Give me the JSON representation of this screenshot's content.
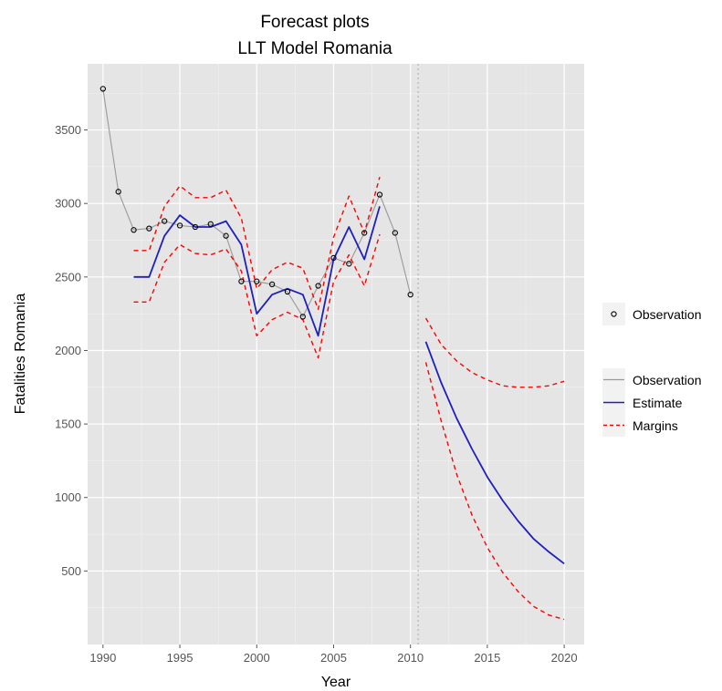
{
  "chart_data": {
    "type": "line",
    "title": "Forecast plots",
    "subtitle": "LLT Model Romania",
    "xlabel": "Year",
    "ylabel": "Fatalities Romania",
    "xlim": [
      1989,
      2021.3
    ],
    "ylim": [
      0,
      3950
    ],
    "x_ticks": [
      1990,
      1995,
      2000,
      2005,
      2010,
      2015,
      2020
    ],
    "y_ticks": [
      500,
      1000,
      1500,
      2000,
      2500,
      3000,
      3500
    ],
    "grid": true,
    "background_color": "#e5e5e5",
    "forecast_start": 2010.5,
    "legend": {
      "placement": "right",
      "points_entry": "Observation",
      "line_entries": [
        "Observation",
        "Estimate",
        "Margins"
      ]
    },
    "series": [
      {
        "name": "Observation",
        "style": "line-with-points",
        "color": "#999999",
        "x": [
          1990,
          1991,
          1992,
          1993,
          1994,
          1995,
          1996,
          1997,
          1998,
          1999,
          2000,
          2001,
          2002,
          2003,
          2004,
          2005,
          2006,
          2007,
          2008,
          2009,
          2010
        ],
        "y": [
          3780,
          3080,
          2820,
          2830,
          2880,
          2850,
          2840,
          2860,
          2780,
          2470,
          2470,
          2450,
          2400,
          2230,
          2440,
          2630,
          2590,
          2800,
          3060,
          2800,
          2380
        ]
      },
      {
        "name": "Estimate",
        "style": "solid",
        "color": "#1f1fbf",
        "x": [
          1992,
          1993,
          1994,
          1995,
          1996,
          1997,
          1998,
          1999,
          2000,
          2001,
          2002,
          2003,
          2004,
          2005,
          2006,
          2007,
          2008
        ],
        "y": [
          2500,
          2500,
          2780,
          2920,
          2840,
          2840,
          2880,
          2720,
          2250,
          2380,
          2420,
          2380,
          2100,
          2620,
          2840,
          2620,
          2980
        ]
      },
      {
        "name": "Estimate",
        "style": "solid",
        "color": "#1f1fbf",
        "x": [
          2011,
          2012,
          2013,
          2014,
          2015,
          2016,
          2017,
          2018,
          2019,
          2020
        ],
        "y": [
          2060,
          1780,
          1540,
          1330,
          1140,
          980,
          840,
          720,
          630,
          550
        ]
      },
      {
        "name": "Margins",
        "style": "dashed",
        "color": "#ff0000",
        "x": [
          1992,
          1993,
          1994,
          1995,
          1996,
          1997,
          1998,
          1999,
          2000,
          2001,
          2002,
          2003,
          2004,
          2005,
          2006,
          2007,
          2008
        ],
        "y": [
          2680,
          2680,
          2980,
          3120,
          3040,
          3040,
          3090,
          2900,
          2420,
          2550,
          2600,
          2560,
          2280,
          2770,
          3050,
          2800,
          3180
        ]
      },
      {
        "name": "Margins",
        "style": "dashed",
        "color": "#ff0000",
        "x": [
          1992,
          1993,
          1994,
          1995,
          1996,
          1997,
          1998,
          1999,
          2000,
          2001,
          2002,
          2003,
          2004,
          2005,
          2006,
          2007,
          2008
        ],
        "y": [
          2330,
          2330,
          2600,
          2720,
          2660,
          2650,
          2690,
          2540,
          2100,
          2210,
          2260,
          2210,
          1950,
          2470,
          2650,
          2440,
          2790
        ]
      },
      {
        "name": "Margins",
        "style": "dashed",
        "color": "#ff0000",
        "x": [
          2011,
          2012,
          2013,
          2014,
          2015,
          2016,
          2017,
          2018,
          2019,
          2020
        ],
        "y": [
          2220,
          2040,
          1930,
          1850,
          1800,
          1760,
          1750,
          1750,
          1760,
          1790
        ]
      },
      {
        "name": "Margins",
        "style": "dashed",
        "color": "#ff0000",
        "x": [
          2011,
          2012,
          2013,
          2014,
          2015,
          2016,
          2017,
          2018,
          2019,
          2020
        ],
        "y": [
          1920,
          1520,
          1160,
          880,
          660,
          490,
          360,
          260,
          200,
          170
        ]
      }
    ]
  }
}
